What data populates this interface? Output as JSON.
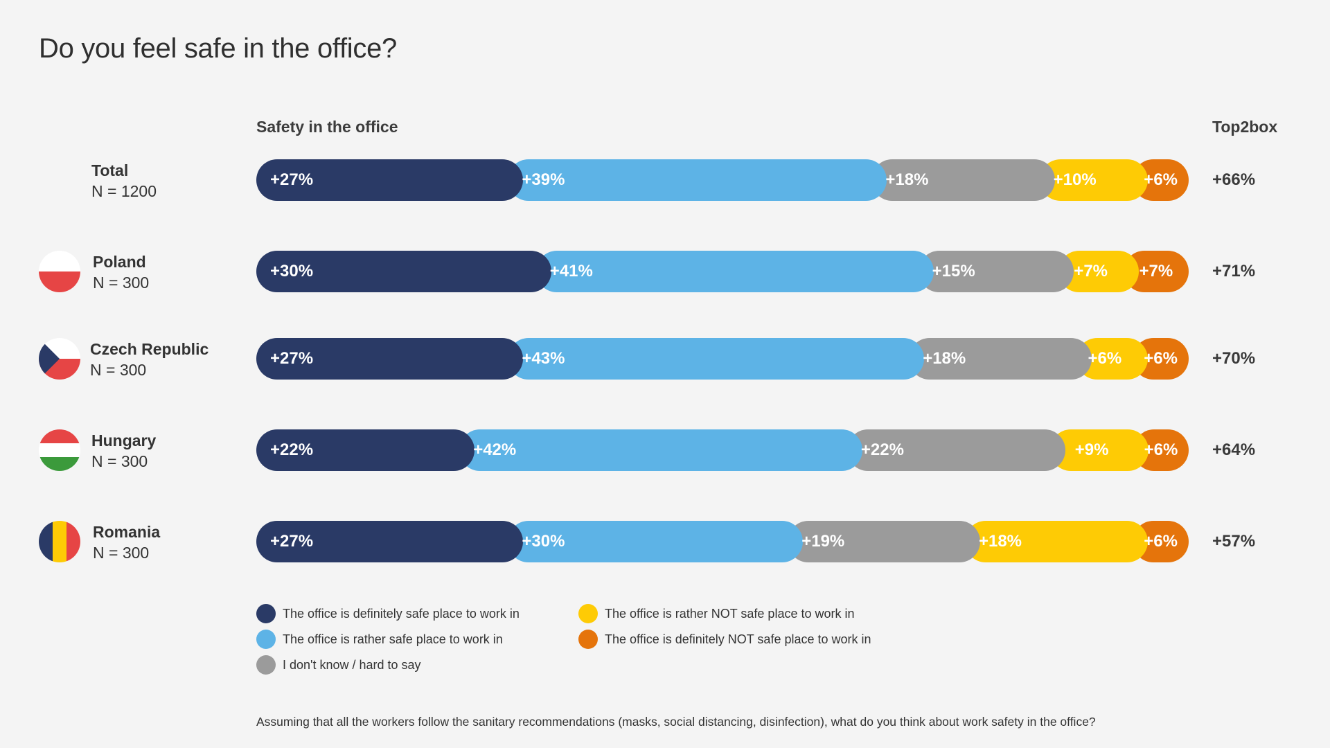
{
  "title": "Do you feel safe in the office?",
  "headers": {
    "section": "Safety in the office",
    "top2box": "Top2box"
  },
  "colors": {
    "definitely_safe": "#2a3a66",
    "rather_safe": "#5db3e6",
    "dont_know": "#9b9b9b",
    "rather_not_safe": "#fecb05",
    "definitely_not_safe": "#e5740b"
  },
  "chart_data": {
    "type": "bar",
    "orientation": "horizontal-stacked",
    "title": "Do you feel safe in the office?",
    "xlabel": "Safety in the office",
    "ylabel": "",
    "categories": [
      "Total",
      "Poland",
      "Czech Republic",
      "Hungary",
      "Romania"
    ],
    "sample_sizes": [
      "N = 1200",
      "N = 300",
      "N = 300",
      "N = 300",
      "N = 300"
    ],
    "flag_icons": [
      "",
      "poland-flag-icon",
      "czech-flag-icon",
      "hungary-flag-icon",
      "romania-flag-icon"
    ],
    "series": [
      {
        "key": "definitely_safe",
        "name": "The office is definitely safe place to work in",
        "values": [
          27,
          30,
          27,
          22,
          27
        ]
      },
      {
        "key": "rather_safe",
        "name": "The office is rather safe place to work in",
        "values": [
          39,
          41,
          43,
          42,
          30
        ]
      },
      {
        "key": "dont_know",
        "name": "I don't know / hard to say",
        "values": [
          18,
          15,
          18,
          22,
          19
        ]
      },
      {
        "key": "rather_not_safe",
        "name": "The office is rather NOT safe place to work in",
        "values": [
          10,
          7,
          6,
          9,
          18
        ]
      },
      {
        "key": "definitely_not_safe",
        "name": "The office is definitely NOT safe place to work in",
        "values": [
          6,
          7,
          6,
          6,
          6
        ]
      }
    ],
    "top2box_label": "Top2box",
    "top2box": [
      66,
      71,
      70,
      64,
      57
    ],
    "value_format": "+{v}%",
    "legend_position": "bottom-left",
    "grid": false
  },
  "legend": [
    {
      "key": "definitely_safe",
      "label": "The office is definitely safe place to work in"
    },
    {
      "key": "rather_safe",
      "label": "The office is rather safe place to work in"
    },
    {
      "key": "dont_know",
      "label": " I don't know / hard to say"
    },
    {
      "key": "rather_not_safe",
      "label": "The office is rather NOT safe place to work in"
    },
    {
      "key": "definitely_not_safe",
      "label": "The office is definitely NOT safe place to work in"
    }
  ],
  "footnote": "Assuming that all the workers follow the sanitary recommendations (masks, social distancing, disinfection), what do you think about work safety in the office?"
}
